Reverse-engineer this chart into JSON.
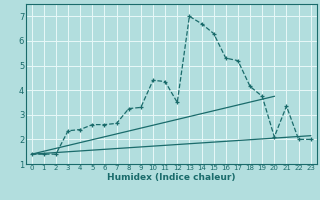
{
  "xlabel": "Humidex (Indice chaleur)",
  "xlim": [
    -0.5,
    23.5
  ],
  "ylim": [
    1.0,
    7.5
  ],
  "yticks": [
    1,
    2,
    3,
    4,
    5,
    6,
    7
  ],
  "xticks": [
    0,
    1,
    2,
    3,
    4,
    5,
    6,
    7,
    8,
    9,
    10,
    11,
    12,
    13,
    14,
    15,
    16,
    17,
    18,
    19,
    20,
    21,
    22,
    23
  ],
  "background_color": "#b2dede",
  "grid_color": "#e8f8f8",
  "line_color": "#1a6b6b",
  "main_line_x": [
    0,
    1,
    2,
    3,
    4,
    5,
    6,
    7,
    8,
    9,
    10,
    11,
    12,
    13,
    14,
    15,
    16,
    17,
    18,
    19,
    20,
    21,
    22,
    23
  ],
  "main_line_y": [
    1.4,
    1.4,
    1.4,
    2.35,
    2.4,
    2.6,
    2.6,
    2.65,
    3.25,
    3.3,
    4.4,
    4.35,
    3.5,
    7.0,
    6.7,
    6.3,
    5.3,
    5.2,
    4.15,
    3.75,
    2.1,
    3.35,
    2.0,
    2.0
  ],
  "lower_line_x": [
    0,
    23
  ],
  "lower_line_y": [
    1.4,
    2.15
  ],
  "upper_line_x": [
    0,
    20
  ],
  "upper_line_y": [
    1.4,
    3.75
  ]
}
